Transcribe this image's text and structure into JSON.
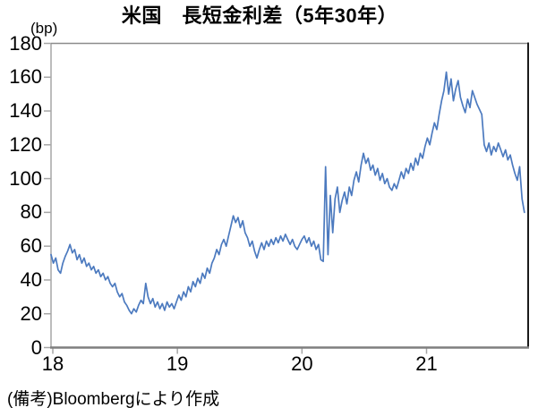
{
  "header": {
    "title": "米国　長短金利差（5年30年）",
    "unit_label": "(bp)"
  },
  "footer": {
    "note": "(備考)Bloombergにより作成"
  },
  "chart_data": {
    "type": "line",
    "title": "米国　長短金利差（5年30年）",
    "ylabel": "(bp)",
    "note": "(備考)Bloombergにより作成",
    "line_color": "#4C7ABF",
    "axis_color": "#a6a6a6",
    "bottom_axis_color": "#7f7f7f",
    "right_border_color": "#1a1a1a",
    "top_border_color": "#8c8c8c",
    "xlim": [
      2018.0,
      2021.83
    ],
    "ylim": [
      0,
      180
    ],
    "y_ticks": [
      0,
      20,
      40,
      60,
      80,
      100,
      120,
      140,
      160,
      180
    ],
    "x_tick_positions": [
      2018,
      2019,
      2020,
      2021
    ],
    "x_tick_labels": [
      "18",
      "19",
      "20",
      "21"
    ],
    "grid": false,
    "legend": "none",
    "x_start": 2018.0,
    "x_step": 0.019,
    "series": [
      {
        "name": "5年30年",
        "values": [
          55,
          50,
          53,
          46,
          44,
          50,
          54,
          57,
          61,
          56,
          58,
          52,
          55,
          50,
          53,
          48,
          50,
          46,
          48,
          44,
          46,
          42,
          44,
          40,
          42,
          38,
          36,
          38,
          33,
          30,
          32,
          27,
          25,
          22,
          20,
          23,
          21,
          25,
          28,
          26,
          38,
          30,
          26,
          29,
          24,
          27,
          23,
          26,
          22,
          27,
          24,
          26,
          23,
          27,
          31,
          28,
          33,
          30,
          36,
          33,
          39,
          36,
          41,
          38,
          44,
          41,
          47,
          44,
          50,
          53,
          58,
          55,
          61,
          64,
          60,
          66,
          72,
          78,
          74,
          77,
          71,
          75,
          68,
          65,
          60,
          63,
          57,
          53,
          58,
          62,
          58,
          63,
          60,
          64,
          61,
          65,
          62,
          66,
          63,
          67,
          64,
          61,
          64,
          60,
          58,
          61,
          64,
          66,
          62,
          65,
          60,
          63,
          58,
          61,
          52,
          51,
          107,
          55,
          90,
          68,
          88,
          95,
          80,
          87,
          92,
          85,
          95,
          90,
          99,
          104,
          98,
          108,
          115,
          109,
          112,
          105,
          108,
          102,
          106,
          99,
          103,
          97,
          100,
          95,
          93,
          97,
          94,
          99,
          104,
          100,
          106,
          103,
          109,
          105,
          112,
          108,
          115,
          112,
          119,
          124,
          120,
          127,
          133,
          129,
          138,
          146,
          152,
          163,
          150,
          159,
          146,
          153,
          158,
          148,
          143,
          139,
          147,
          142,
          152,
          148,
          144,
          141,
          138,
          120,
          116,
          121,
          114,
          119,
          116,
          121,
          117,
          113,
          117,
          111,
          114,
          108,
          103,
          99,
          107,
          88,
          80
        ]
      }
    ]
  }
}
